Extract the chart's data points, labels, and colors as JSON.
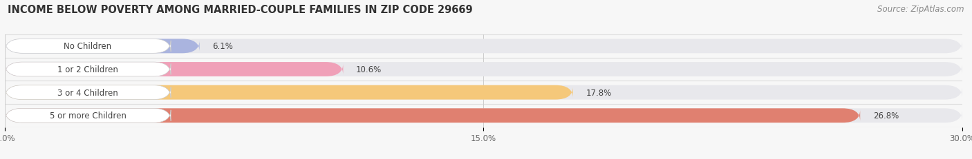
{
  "title": "INCOME BELOW POVERTY AMONG MARRIED-COUPLE FAMILIES IN ZIP CODE 29669",
  "source": "Source: ZipAtlas.com",
  "categories": [
    "No Children",
    "1 or 2 Children",
    "3 or 4 Children",
    "5 or more Children"
  ],
  "values": [
    6.1,
    10.6,
    17.8,
    26.8
  ],
  "bar_colors": [
    "#aab4df",
    "#f0a0b8",
    "#f5c87a",
    "#e08070"
  ],
  "bar_bg_color": "#e8e8ec",
  "xlim": [
    0,
    30.0
  ],
  "xticks": [
    0.0,
    15.0,
    30.0
  ],
  "xtick_labels": [
    "0.0%",
    "15.0%",
    "30.0%"
  ],
  "title_fontsize": 10.5,
  "source_fontsize": 8.5,
  "label_fontsize": 8.5,
  "value_fontsize": 8.5,
  "bar_height": 0.62,
  "background_color": "#f7f7f7",
  "label_pill_color": "#ffffff",
  "label_text_color": "#444444",
  "value_text_color": "#444444",
  "separator_color": "#dddddd",
  "grid_color": "#cccccc"
}
